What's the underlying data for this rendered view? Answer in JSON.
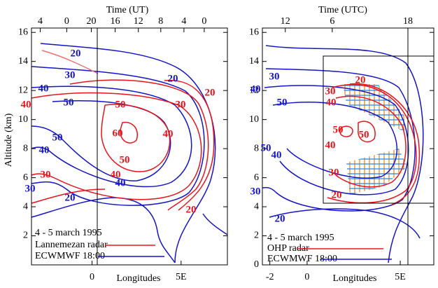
{
  "chart_data": [
    {
      "type": "contour",
      "title": "Time (UT)",
      "ylabel": "Altitude (km)",
      "xlabel": "Longitudes",
      "annotation": "4 - 5 march 1995",
      "xlim": [
        -3.4,
        7.6
      ],
      "ylim": [
        0,
        16.3
      ],
      "xticks": [
        0,
        {
          "value": 5,
          "label": "5E"
        }
      ],
      "yticks": [
        2,
        4,
        6,
        8,
        10,
        12,
        14,
        16
      ],
      "x2ticks": [
        {
          "value": -2.91,
          "label": "4"
        },
        {
          "value": -1.42,
          "label": "0"
        },
        {
          "value": -0.04,
          "label": "20"
        },
        {
          "value": 1.3,
          "label": "16"
        },
        {
          "value": 2.6,
          "label": "12"
        },
        {
          "value": 3.86,
          "label": "8"
        },
        {
          "value": 5.16,
          "label": "4"
        },
        {
          "value": 6.3,
          "label": "0"
        }
      ],
      "series": [
        {
          "name": "Lannemezan radar",
          "color": "#e8141c",
          "levels": [
            20,
            30,
            40,
            50,
            60,
            50,
            40,
            30,
            40,
            20
          ]
        },
        {
          "name": "ECWMWF 18:00",
          "color": "#1414c8",
          "levels": [
            20,
            30,
            40,
            50,
            50,
            40,
            30,
            20,
            40,
            20
          ]
        }
      ]
    },
    {
      "type": "contour",
      "title": "Time (UTC)",
      "xlabel": "Longitudes",
      "annotation": "4 - 5 march 1995",
      "xlim": [
        -2.4,
        6.8
      ],
      "ylim": [
        0,
        16.3
      ],
      "xticks": [
        -2,
        0,
        {
          "value": 5,
          "label": "5E"
        }
      ],
      "yticks": [
        0,
        2,
        4,
        6,
        8,
        10,
        12,
        14,
        16
      ],
      "x2ticks": [
        {
          "value": -1.17,
          "label": "12"
        },
        {
          "value": 1.35,
          "label": "6"
        },
        {
          "value": 5.41,
          "label": "18"
        }
      ],
      "series": [
        {
          "name": "OHP radar",
          "color": "#e8141c",
          "levels": [
            20,
            30,
            40,
            50,
            50,
            40,
            30,
            20
          ]
        },
        {
          "name": "ECWMWF 18:00",
          "color": "#1414c8",
          "levels": [
            30,
            40,
            50,
            50,
            40,
            30,
            20
          ]
        }
      ]
    }
  ]
}
